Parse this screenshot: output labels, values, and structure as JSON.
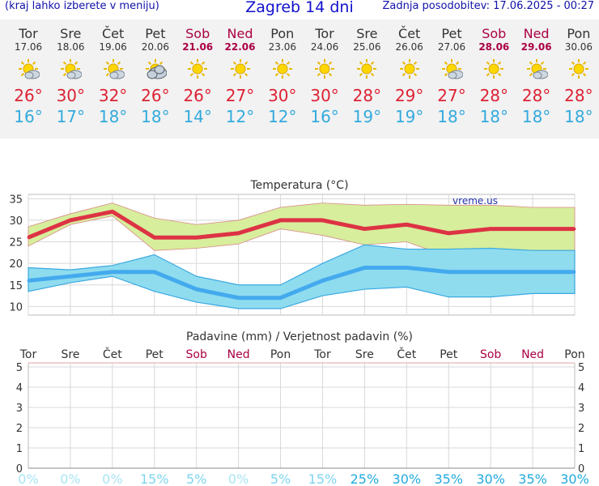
{
  "header": {
    "menu_hint": "(kraj lahko izberete v meniju)",
    "title": "Zagreb 14 dni",
    "updated": "Zadnja posodobitev: 17.06.2025 - 00:27"
  },
  "days": [
    {
      "name": "Tor",
      "date": "17.06",
      "weekend": false,
      "icon": "partly-cloudy-icon",
      "tmax": "26°",
      "tmin": "16°"
    },
    {
      "name": "Sre",
      "date": "18.06",
      "weekend": false,
      "icon": "partly-cloudy-icon",
      "tmax": "30°",
      "tmin": "17°"
    },
    {
      "name": "Čet",
      "date": "19.06",
      "weekend": false,
      "icon": "partly-cloudy-icon",
      "tmax": "32°",
      "tmin": "18°"
    },
    {
      "name": "Pet",
      "date": "20.06",
      "weekend": false,
      "icon": "cloudy-sun-icon",
      "tmax": "26°",
      "tmin": "18°"
    },
    {
      "name": "Sob",
      "date": "21.06",
      "weekend": true,
      "icon": "sun-icon",
      "tmax": "26°",
      "tmin": "14°"
    },
    {
      "name": "Ned",
      "date": "22.06",
      "weekend": true,
      "icon": "sun-icon",
      "tmax": "27°",
      "tmin": "12°"
    },
    {
      "name": "Pon",
      "date": "23.06",
      "weekend": false,
      "icon": "sun-icon",
      "tmax": "30°",
      "tmin": "12°"
    },
    {
      "name": "Tor",
      "date": "24.06",
      "weekend": false,
      "icon": "sun-icon",
      "tmax": "30°",
      "tmin": "16°"
    },
    {
      "name": "Sre",
      "date": "25.06",
      "weekend": false,
      "icon": "sun-icon",
      "tmax": "28°",
      "tmin": "19°"
    },
    {
      "name": "Čet",
      "date": "26.06",
      "weekend": false,
      "icon": "sun-icon",
      "tmax": "29°",
      "tmin": "19°"
    },
    {
      "name": "Pet",
      "date": "27.06",
      "weekend": false,
      "icon": "partly-cloudy-icon",
      "tmax": "27°",
      "tmin": "18°"
    },
    {
      "name": "Sob",
      "date": "28.06",
      "weekend": true,
      "icon": "sun-icon",
      "tmax": "28°",
      "tmin": "18°"
    },
    {
      "name": "Ned",
      "date": "29.06",
      "weekend": true,
      "icon": "partly-cloudy-icon",
      "tmax": "28°",
      "tmin": "18°"
    },
    {
      "name": "Pon",
      "date": "30.06",
      "weekend": false,
      "icon": "sun-icon",
      "tmax": "28°",
      "tmin": "18°"
    }
  ],
  "colors": {
    "max_line": "#dd3344",
    "min_line": "#44aaee",
    "max_band": "#d7ee9c",
    "min_band": "#8fdcef",
    "weekend": "#aa0044",
    "grid": "#d8d8d8"
  },
  "chart_data": [
    {
      "type": "line",
      "title": "Temperatura (°C)",
      "watermark": "vreme.us",
      "categories": [
        "Tor",
        "Sre",
        "Čet",
        "Pet",
        "Sob",
        "Ned",
        "Pon",
        "Tor",
        "Sre",
        "Čet",
        "Pet",
        "Sob",
        "Ned",
        "Pon"
      ],
      "ylim": [
        8,
        36
      ],
      "yticks": [
        10,
        15,
        20,
        25,
        30,
        35
      ],
      "series": [
        {
          "name": "max",
          "values": [
            26,
            30,
            32,
            26,
            26,
            27,
            30,
            30,
            28,
            29,
            27,
            28,
            28,
            28
          ]
        },
        {
          "name": "min",
          "values": [
            16,
            17,
            18,
            18,
            14,
            12,
            12,
            16,
            19,
            19,
            18,
            18,
            18,
            18
          ]
        }
      ],
      "bands": [
        {
          "lo": [
            24,
            29,
            31,
            23,
            23.5,
            24.5,
            28,
            26.5,
            24.3,
            25,
            21.5,
            22,
            23,
            23
          ],
          "hi": [
            28.5,
            31.5,
            34,
            30.5,
            29,
            30,
            33,
            34,
            33.5,
            33.7,
            33.5,
            33.5,
            33,
            33
          ]
        },
        {
          "lo": [
            13.5,
            15.5,
            17,
            13.5,
            11,
            9.5,
            9.5,
            12.5,
            14,
            14.5,
            12.2,
            12.2,
            13,
            13
          ],
          "hi": [
            19,
            18.5,
            19.5,
            22,
            17,
            15,
            15,
            20,
            24.3,
            23.3,
            23.3,
            23.5,
            23,
            23
          ]
        }
      ]
    },
    {
      "type": "bar",
      "title": "Padavine (mm) / Verjetnost padavin (%)",
      "categories": [
        "Tor",
        "Sre",
        "Čet",
        "Pet",
        "Sob",
        "Ned",
        "Pon",
        "Tor",
        "Sre",
        "Čet",
        "Pet",
        "Sob",
        "Ned",
        "Pon"
      ],
      "ylim": [
        0,
        5.2
      ],
      "yticks": [
        0,
        1,
        2,
        3,
        4,
        5
      ],
      "values": [
        0,
        0,
        0,
        0,
        0,
        0,
        0,
        0,
        0,
        0,
        0,
        0,
        0,
        0
      ],
      "probability": [
        "0%",
        "0%",
        "0%",
        "15%",
        "5%",
        "0%",
        "5%",
        "15%",
        "25%",
        "30%",
        "35%",
        "30%",
        "35%",
        "30%"
      ]
    }
  ]
}
